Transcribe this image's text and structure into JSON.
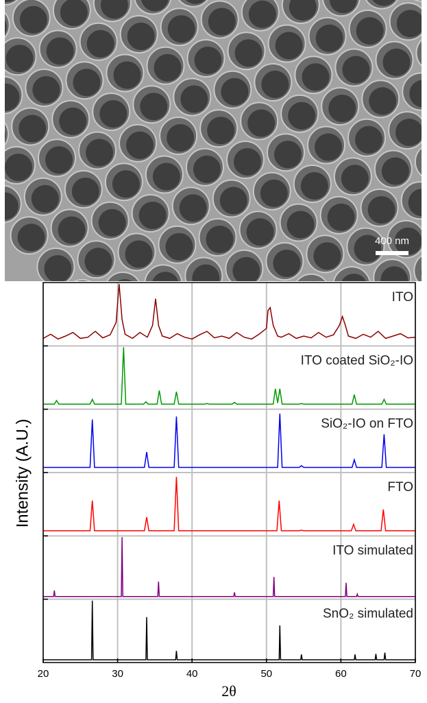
{
  "scale_bar": "400 nm",
  "chart_data": {
    "type": "line",
    "xlabel": "2θ",
    "ylabel": "Intensity (A.U.)",
    "xlim": [
      20,
      70
    ],
    "xticks": [
      20,
      30,
      40,
      50,
      60,
      70
    ],
    "ylim": [
      0,
      1
    ],
    "grid": true,
    "series": [
      {
        "name": "ITO",
        "color": "#8b0000",
        "x": [
          20,
          21,
          22,
          23,
          24,
          25,
          26,
          27,
          28,
          29,
          29.8,
          30.2,
          30.6,
          31,
          32,
          33,
          34,
          34.7,
          35.1,
          35.5,
          36,
          37,
          38,
          39,
          40,
          41,
          42,
          43,
          44,
          45,
          46,
          47,
          48,
          49,
          50,
          50.2,
          50.5,
          50.9,
          51.5,
          52,
          53,
          54,
          55,
          56,
          57,
          58,
          59,
          59.8,
          60.2,
          60.6,
          61,
          62,
          63,
          64,
          65,
          66,
          67,
          68,
          69,
          70
        ],
        "values": [
          0.08,
          0.15,
          0.07,
          0.12,
          0.18,
          0.08,
          0.1,
          0.2,
          0.09,
          0.14,
          0.35,
          1.0,
          0.4,
          0.15,
          0.08,
          0.18,
          0.1,
          0.3,
          0.75,
          0.3,
          0.12,
          0.08,
          0.16,
          0.1,
          0.07,
          0.14,
          0.2,
          0.09,
          0.12,
          0.08,
          0.18,
          0.1,
          0.07,
          0.15,
          0.25,
          0.55,
          0.6,
          0.3,
          0.12,
          0.1,
          0.16,
          0.08,
          0.12,
          0.09,
          0.18,
          0.1,
          0.14,
          0.3,
          0.45,
          0.3,
          0.12,
          0.08,
          0.15,
          0.1,
          0.2,
          0.08,
          0.12,
          0.16,
          0.09,
          0.1
        ]
      },
      {
        "name": "ITO coated SiO₂-IO",
        "color": "#009900",
        "x": [
          20,
          21.5,
          21.8,
          22.1,
          26.3,
          26.6,
          26.9,
          30.5,
          30.8,
          31.1,
          33.5,
          33.8,
          34.1,
          35.3,
          35.6,
          35.9,
          37.6,
          37.9,
          38.2,
          41.7,
          42,
          42.3,
          45.4,
          45.7,
          46,
          50.9,
          51.2,
          51.5,
          51.8,
          52.1,
          54.4,
          54.7,
          55,
          61.5,
          61.8,
          62.1,
          65.5,
          65.8,
          66.1,
          70
        ],
        "values": [
          0.04,
          0.04,
          0.1,
          0.04,
          0.04,
          0.12,
          0.04,
          0.04,
          1.0,
          0.04,
          0.04,
          0.08,
          0.04,
          0.04,
          0.27,
          0.04,
          0.04,
          0.25,
          0.04,
          0.04,
          0.05,
          0.04,
          0.04,
          0.07,
          0.04,
          0.04,
          0.3,
          0.06,
          0.3,
          0.04,
          0.04,
          0.05,
          0.04,
          0.04,
          0.2,
          0.04,
          0.04,
          0.12,
          0.04,
          0.04
        ]
      },
      {
        "name": "SiO₂-IO on FTO",
        "color": "#0000ee",
        "x": [
          20,
          26.3,
          26.6,
          26.9,
          33.6,
          33.9,
          34.2,
          37.6,
          37.9,
          38.2,
          51.5,
          51.8,
          52.1,
          54.4,
          54.7,
          55,
          61.5,
          61.8,
          62.1,
          65.5,
          65.8,
          66.1,
          70
        ],
        "values": [
          0.04,
          0.04,
          0.85,
          0.04,
          0.04,
          0.3,
          0.04,
          0.04,
          0.9,
          0.04,
          0.04,
          0.95,
          0.04,
          0.04,
          0.07,
          0.04,
          0.04,
          0.17,
          0.04,
          0.04,
          0.6,
          0.04,
          0.04
        ]
      },
      {
        "name": "FTO",
        "color": "#ff0000",
        "x": [
          20,
          26.3,
          26.6,
          26.9,
          33.6,
          33.9,
          34.2,
          37.6,
          37.9,
          38.2,
          51.4,
          51.7,
          52,
          54.4,
          54.7,
          55,
          61.4,
          61.7,
          62,
          65.4,
          65.7,
          66,
          70
        ],
        "values": [
          0.04,
          0.04,
          0.55,
          0.04,
          0.04,
          0.27,
          0.04,
          0.04,
          0.95,
          0.04,
          0.04,
          0.55,
          0.04,
          0.04,
          0.05,
          0.04,
          0.04,
          0.15,
          0.04,
          0.04,
          0.4,
          0.04,
          0.04
        ]
      },
      {
        "name": "ITO simulated",
        "color": "#800080",
        "x": [
          20,
          21.4,
          21.5,
          21.6,
          30.5,
          30.6,
          30.7,
          35.4,
          35.5,
          35.6,
          45.6,
          45.7,
          45.8,
          50.9,
          51,
          51.1,
          60.6,
          60.7,
          60.8,
          62.1,
          62.2,
          62.3,
          70
        ],
        "values": [
          0,
          0,
          0.1,
          0,
          0,
          1.0,
          0,
          0,
          0.25,
          0,
          0,
          0.07,
          0,
          0,
          0.33,
          0,
          0,
          0.23,
          0,
          0,
          0.04,
          0,
          0
        ]
      },
      {
        "name": "SnO₂ simulated",
        "color": "#000000",
        "x": [
          20,
          26.5,
          26.6,
          26.7,
          33.8,
          33.9,
          34,
          37.8,
          37.9,
          38,
          51.7,
          51.8,
          51.9,
          54.6,
          54.7,
          54.8,
          61.8,
          61.9,
          62,
          64.6,
          64.7,
          64.8,
          65.8,
          65.9,
          66,
          70
        ],
        "values": [
          0,
          0,
          1.0,
          0,
          0,
          0.72,
          0,
          0,
          0.15,
          0,
          0,
          0.58,
          0,
          0,
          0.09,
          0,
          0,
          0.09,
          0,
          0,
          0.1,
          0,
          0,
          0.12,
          0,
          0
        ]
      }
    ]
  }
}
